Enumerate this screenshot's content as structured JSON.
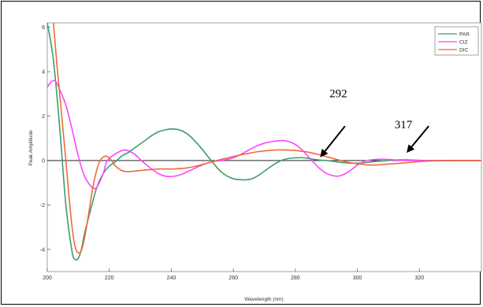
{
  "chart_data": {
    "type": "line",
    "title": "",
    "xlabel": "Wavelength (nm)",
    "ylabel": "Peak Amplitude",
    "xlim": [
      200,
      340
    ],
    "ylim": [
      -5,
      6.2
    ],
    "xticks": [
      200,
      220,
      240,
      260,
      280,
      300,
      320
    ],
    "yticks": [
      -4,
      -2,
      0,
      2,
      4,
      6
    ],
    "legend_position": "top-right",
    "grid": false,
    "zero_line": true,
    "series": [
      {
        "name": "PAR",
        "color": "#3f9b72",
        "points": [
          [
            200,
            6.2
          ],
          [
            202,
            4.5
          ],
          [
            204,
            1.5
          ],
          [
            206,
            -2.0
          ],
          [
            208,
            -4.1
          ],
          [
            209,
            -4.45
          ],
          [
            210,
            -4.4
          ],
          [
            211,
            -4.0
          ],
          [
            212,
            -3.3
          ],
          [
            214,
            -2.2
          ],
          [
            216,
            -1.2
          ],
          [
            218,
            -0.6
          ],
          [
            220,
            -0.25
          ],
          [
            222,
            -0.05
          ],
          [
            224,
            0.2
          ],
          [
            226,
            0.35
          ],
          [
            228,
            0.55
          ],
          [
            230,
            0.75
          ],
          [
            232,
            0.95
          ],
          [
            234,
            1.15
          ],
          [
            236,
            1.3
          ],
          [
            238,
            1.38
          ],
          [
            240,
            1.42
          ],
          [
            242,
            1.4
          ],
          [
            244,
            1.3
          ],
          [
            246,
            1.1
          ],
          [
            248,
            0.82
          ],
          [
            250,
            0.5
          ],
          [
            252,
            0.15
          ],
          [
            254,
            -0.2
          ],
          [
            256,
            -0.5
          ],
          [
            258,
            -0.7
          ],
          [
            260,
            -0.82
          ],
          [
            262,
            -0.86
          ],
          [
            264,
            -0.87
          ],
          [
            266,
            -0.82
          ],
          [
            268,
            -0.68
          ],
          [
            270,
            -0.48
          ],
          [
            272,
            -0.28
          ],
          [
            274,
            -0.1
          ],
          [
            276,
            0.03
          ],
          [
            278,
            0.1
          ],
          [
            280,
            0.12
          ],
          [
            282,
            0.13
          ],
          [
            284,
            0.1
          ],
          [
            286,
            0.05
          ],
          [
            288,
            0.02
          ],
          [
            290,
            0.0
          ],
          [
            292,
            -0.03
          ],
          [
            294,
            -0.07
          ],
          [
            296,
            -0.1
          ],
          [
            298,
            -0.12
          ],
          [
            300,
            -0.12
          ],
          [
            302,
            -0.1
          ],
          [
            304,
            -0.07
          ],
          [
            306,
            -0.04
          ],
          [
            308,
            -0.02
          ],
          [
            310,
            0.0
          ],
          [
            312,
            0.02
          ],
          [
            314,
            0.03
          ],
          [
            316,
            0.03
          ],
          [
            318,
            0.02
          ],
          [
            320,
            0.01
          ],
          [
            324,
            0.0
          ],
          [
            330,
            0.0
          ],
          [
            340,
            0.0
          ]
        ]
      },
      {
        "name": "CIZ",
        "color": "#ff44ff",
        "points": [
          [
            200,
            3.3
          ],
          [
            201,
            3.5
          ],
          [
            202,
            3.6
          ],
          [
            203,
            3.5
          ],
          [
            204,
            3.2
          ],
          [
            206,
            2.5
          ],
          [
            208,
            1.4
          ],
          [
            210,
            0.2
          ],
          [
            212,
            -0.7
          ],
          [
            214,
            -1.15
          ],
          [
            215,
            -1.25
          ],
          [
            216,
            -1.2
          ],
          [
            218,
            -0.6
          ],
          [
            219,
            -0.1
          ],
          [
            220,
            0.1
          ],
          [
            222,
            0.3
          ],
          [
            224,
            0.45
          ],
          [
            225,
            0.48
          ],
          [
            226,
            0.45
          ],
          [
            228,
            0.3
          ],
          [
            230,
            0.05
          ],
          [
            232,
            -0.2
          ],
          [
            234,
            -0.42
          ],
          [
            236,
            -0.6
          ],
          [
            238,
            -0.7
          ],
          [
            240,
            -0.72
          ],
          [
            242,
            -0.68
          ],
          [
            244,
            -0.58
          ],
          [
            246,
            -0.45
          ],
          [
            248,
            -0.32
          ],
          [
            250,
            -0.2
          ],
          [
            252,
            -0.1
          ],
          [
            254,
            -0.03
          ],
          [
            256,
            0.0
          ],
          [
            258,
            0.05
          ],
          [
            260,
            0.12
          ],
          [
            262,
            0.25
          ],
          [
            264,
            0.4
          ],
          [
            266,
            0.55
          ],
          [
            268,
            0.68
          ],
          [
            270,
            0.78
          ],
          [
            272,
            0.84
          ],
          [
            274,
            0.88
          ],
          [
            276,
            0.9
          ],
          [
            278,
            0.85
          ],
          [
            280,
            0.72
          ],
          [
            282,
            0.5
          ],
          [
            284,
            0.2
          ],
          [
            286,
            -0.1
          ],
          [
            288,
            -0.38
          ],
          [
            290,
            -0.58
          ],
          [
            292,
            -0.68
          ],
          [
            294,
            -0.7
          ],
          [
            296,
            -0.6
          ],
          [
            298,
            -0.42
          ],
          [
            300,
            -0.2
          ],
          [
            302,
            -0.05
          ],
          [
            304,
            0.02
          ],
          [
            306,
            0.05
          ],
          [
            308,
            0.06
          ],
          [
            310,
            0.05
          ],
          [
            312,
            0.03
          ],
          [
            314,
            0.01
          ],
          [
            316,
            0.0
          ],
          [
            320,
            0.0
          ],
          [
            330,
            0.0
          ],
          [
            340,
            0.0
          ]
        ]
      },
      {
        "name": "DIC",
        "color": "#ee6a3a",
        "points": [
          [
            202,
            6.2
          ],
          [
            203,
            4.5
          ],
          [
            204,
            3.0
          ],
          [
            205,
            1.5
          ],
          [
            206,
            0.0
          ],
          [
            207,
            -1.6
          ],
          [
            208,
            -3.0
          ],
          [
            209,
            -3.9
          ],
          [
            210,
            -4.15
          ],
          [
            211,
            -4.05
          ],
          [
            212,
            -3.5
          ],
          [
            213,
            -2.7
          ],
          [
            214,
            -1.8
          ],
          [
            215,
            -1.0
          ],
          [
            216,
            -0.4
          ],
          [
            217,
            0.0
          ],
          [
            218,
            0.15
          ],
          [
            219,
            0.2
          ],
          [
            220,
            0.12
          ],
          [
            221,
            -0.05
          ],
          [
            222,
            -0.25
          ],
          [
            224,
            -0.45
          ],
          [
            226,
            -0.5
          ],
          [
            228,
            -0.48
          ],
          [
            230,
            -0.45
          ],
          [
            232,
            -0.42
          ],
          [
            234,
            -0.4
          ],
          [
            236,
            -0.38
          ],
          [
            240,
            -0.38
          ],
          [
            244,
            -0.35
          ],
          [
            248,
            -0.25
          ],
          [
            252,
            -0.1
          ],
          [
            256,
            0.05
          ],
          [
            260,
            0.18
          ],
          [
            264,
            0.3
          ],
          [
            268,
            0.4
          ],
          [
            272,
            0.46
          ],
          [
            276,
            0.48
          ],
          [
            280,
            0.45
          ],
          [
            284,
            0.38
          ],
          [
            288,
            0.25
          ],
          [
            292,
            0.1
          ],
          [
            296,
            -0.05
          ],
          [
            300,
            -0.15
          ],
          [
            302,
            -0.18
          ],
          [
            304,
            -0.2
          ],
          [
            306,
            -0.2
          ],
          [
            308,
            -0.18
          ],
          [
            310,
            -0.16
          ],
          [
            314,
            -0.12
          ],
          [
            318,
            -0.07
          ],
          [
            322,
            -0.03
          ],
          [
            326,
            -0.01
          ],
          [
            330,
            0.0
          ],
          [
            340,
            0.0
          ]
        ]
      }
    ],
    "annotations": [
      {
        "label": "292",
        "text_x": 291,
        "text_y": 2.85,
        "arrow_from": [
          296,
          1.55
        ],
        "arrow_to": [
          288.3,
          0.2
        ]
      },
      {
        "label": "317",
        "text_x": 312,
        "text_y": 1.45,
        "arrow_from": [
          323,
          1.55
        ],
        "arrow_to": [
          316.2,
          0.4
        ]
      }
    ]
  }
}
